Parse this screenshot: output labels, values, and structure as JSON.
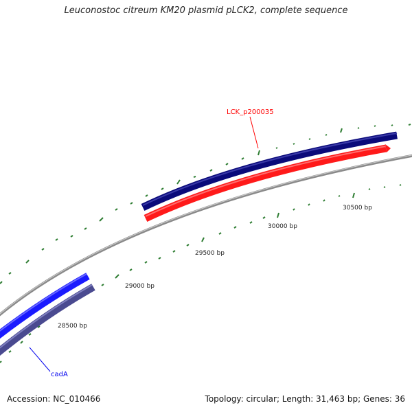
{
  "title": "Leuconostoc citreum KM20 plasmid pLCK2, complete sequence",
  "footer": {
    "accession": "Accession: NC_010466",
    "summary": "Topology: circular; Length: 31,463 bp; Genes: 36"
  },
  "position_labels": [
    "28500 bp",
    "29000 bp",
    "29500 bp",
    "30000 bp",
    "30500 bp"
  ],
  "genes": [
    {
      "name": "LCK_p200035",
      "color": "#ff0000"
    },
    {
      "name": "cadA",
      "color": "#0000ee"
    }
  ],
  "colors": {
    "backbone": "#8c8c8c",
    "track_dark_navy": "#0a0a7a",
    "track_red": "#ff1a1a",
    "track_blue": "#1a1aff",
    "track_slate": "#4a4a90",
    "ticks": "#2e7d32"
  }
}
